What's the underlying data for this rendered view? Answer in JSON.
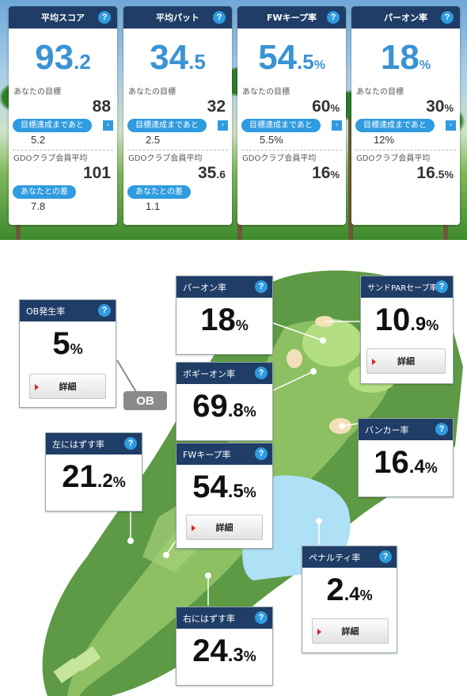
{
  "top_cards": [
    {
      "title": "平均スコア",
      "main": {
        "int": "93",
        "dec": ".2",
        "unit": ""
      },
      "goal_label": "あなたの目標",
      "goal": {
        "int": "88",
        "dec": "",
        "unit": ""
      },
      "remaining_label": "目標達成まであと",
      "remaining": "5.2",
      "gdo_label": "GDOクラブ会員平均",
      "gdo": {
        "int": "101",
        "dec": "",
        "unit": ""
      },
      "diff_label": "あなたとの差",
      "diff": "7.8"
    },
    {
      "title": "平均パット",
      "main": {
        "int": "34",
        "dec": ".5",
        "unit": ""
      },
      "goal_label": "あなたの目標",
      "goal": {
        "int": "32",
        "dec": "",
        "unit": ""
      },
      "remaining_label": "目標達成まであと",
      "remaining": "2.5",
      "gdo_label": "GDOクラブ会員平均",
      "gdo": {
        "int": "35",
        "dec": ".6",
        "unit": ""
      },
      "diff_label": "あなたとの差",
      "diff": "1.1"
    },
    {
      "title": "FWキープ率",
      "main": {
        "int": "54",
        "dec": ".5",
        "unit": "%"
      },
      "goal_label": "あなたの目標",
      "goal": {
        "int": "60",
        "dec": "",
        "unit": "%"
      },
      "remaining_label": "目標達成まであと",
      "remaining": "5.5%",
      "gdo_label": "GDOクラブ会員平均",
      "gdo": {
        "int": "16",
        "dec": "",
        "unit": "%"
      }
    },
    {
      "title": "パーオン率",
      "main": {
        "int": "18",
        "dec": "",
        "unit": "%"
      },
      "goal_label": "あなたの目標",
      "goal": {
        "int": "30",
        "dec": "",
        "unit": "%"
      },
      "remaining_label": "目標達成まであと",
      "remaining": "12%",
      "gdo_label": "GDOクラブ会員平均",
      "gdo": {
        "int": "16",
        "dec": ".5",
        "unit": "%"
      }
    }
  ],
  "help_icon": "?",
  "arrow_icon": "›",
  "detail_label": "詳細",
  "ob_badge": "OB",
  "map_cards": {
    "ob": {
      "title": "OB発生率",
      "int": "5",
      "dec": "",
      "unit": "%"
    },
    "paron": {
      "title": "パーオン率",
      "int": "18",
      "dec": "",
      "unit": "%"
    },
    "sand": {
      "title": "サンドPARセーブ率",
      "int": "10",
      "dec": ".9",
      "unit": "%"
    },
    "bogey": {
      "title": "ボギーオン率",
      "int": "69",
      "dec": ".8",
      "unit": "%"
    },
    "left": {
      "title": "左にはずす率",
      "int": "21",
      "dec": ".2",
      "unit": "%"
    },
    "fw": {
      "title": "FWキープ率",
      "int": "54",
      "dec": ".5",
      "unit": "%"
    },
    "bunker": {
      "title": "バンカー率",
      "int": "16",
      "dec": ".4",
      "unit": "%"
    },
    "penalty": {
      "title": "ペナルティ率",
      "int": "2",
      "dec": ".4",
      "unit": "%"
    },
    "right": {
      "title": "右にはずす率",
      "int": "24",
      "dec": ".3",
      "unit": "%"
    }
  },
  "colors": {
    "header_navy": "#1f3d66",
    "accent_blue": "#3a93d4",
    "pill_blue": "#2f9be0",
    "detail_arrow_red": "#dd2222"
  }
}
